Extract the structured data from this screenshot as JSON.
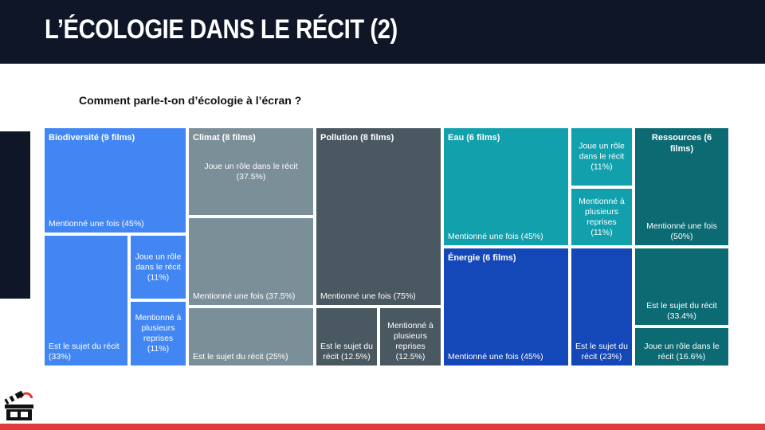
{
  "header": {
    "title": "L’ÉCOLOGIE DANS LE RÉCIT (2)"
  },
  "logo": {
    "icon": "popcorn-clapper-logo-icon"
  },
  "chart_data": {
    "type": "treemap",
    "title": "Comment parle-t-on d’écologie à l’écran ?",
    "groups": [
      {
        "name": "Biodiversité (9 films)",
        "films": 9,
        "color": "#4286f4",
        "items": [
          {
            "label": "Mentionné une fois (45%)",
            "percent": 45
          },
          {
            "label": "Est le sujet du récit (33%)",
            "percent": 33
          },
          {
            "label": "Joue un rôle dans le récit (11%)",
            "percent": 11
          },
          {
            "label": "Mentionné à plusieurs reprises (11%)",
            "percent": 11
          }
        ]
      },
      {
        "name": "Climat (8 films)",
        "films": 8,
        "color": "#7b8f99",
        "items": [
          {
            "label": "Joue un rôle dans le récit (37.5%)",
            "percent": 37.5
          },
          {
            "label": "Mentionné une fois (37.5%)",
            "percent": 37.5
          },
          {
            "label": "Est le sujet du récit (25%)",
            "percent": 25
          }
        ]
      },
      {
        "name": "Pollution (8 films)",
        "films": 8,
        "color": "#4a5861",
        "items": [
          {
            "label": "Mentionné une fois (75%)",
            "percent": 75
          },
          {
            "label": "Est le sujet du récit (12.5%)",
            "percent": 12.5
          },
          {
            "label": "Mentionné à plusieurs reprises (12.5%)",
            "percent": 12.5
          }
        ]
      },
      {
        "name": "Eau (6 films)",
        "films": 6,
        "color": "#12a0ad",
        "items": [
          {
            "label": "Mentionné une fois (45%)",
            "percent": 45
          },
          {
            "label": "Joue un rôle dans le récit (11%)",
            "percent": 11
          },
          {
            "label": "Mentionné à plusieurs reprises (11%)",
            "percent": 11
          }
        ]
      },
      {
        "name": "Énergie (6 films)",
        "films": 6,
        "color": "#1447b8",
        "items": [
          {
            "label": "Mentionné une fois (45%)",
            "percent": 45
          },
          {
            "label": "Est le sujet du récit (23%)",
            "percent": 23
          }
        ]
      },
      {
        "name": "Ressources (6 films)",
        "films": 6,
        "color": "#0c6a73",
        "items": [
          {
            "label": "Mentionné une fois (50%)",
            "percent": 50
          },
          {
            "label": "Est le sujet du récit (33.4%)",
            "percent": 33.4
          },
          {
            "label": "Joue un rôle dans le récit (16.6%)",
            "percent": 16.6
          }
        ]
      }
    ]
  }
}
